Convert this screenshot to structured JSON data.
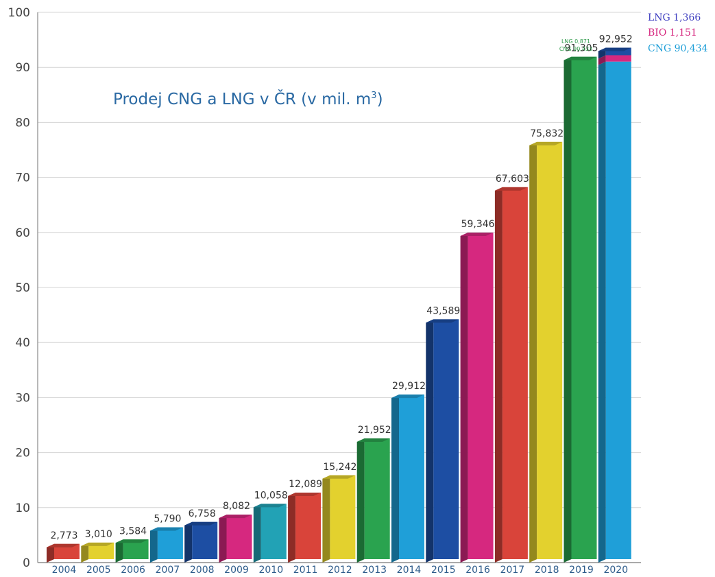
{
  "chart_data": {
    "type": "bar",
    "title": "Prodej CNG a LNG v ČR (v mil. m",
    "title_sup": "3",
    "title_end": ")",
    "ylim": [
      0,
      100
    ],
    "yticks": [
      "0",
      "10",
      "20",
      "30",
      "40",
      "50",
      "60",
      "70",
      "80",
      "90",
      "100"
    ],
    "grid": true,
    "categories": [
      "2004",
      "2005",
      "2006",
      "2007",
      "2008",
      "2009",
      "2010",
      "2011",
      "2012",
      "2013",
      "2014",
      "2015",
      "2016",
      "2017",
      "2018",
      "2019",
      "2020"
    ],
    "values": [
      2.773,
      3.01,
      3.584,
      5.79,
      6.758,
      8.082,
      10.058,
      12.089,
      15.242,
      21.952,
      29.912,
      43.589,
      59.346,
      67.603,
      75.832,
      91.305,
      92.952
    ],
    "labels": [
      "2,773",
      "3,010",
      "3,584",
      "5,790",
      "6,758",
      "8,082",
      "10,058",
      "12,089",
      "15,242",
      "21,952",
      "29,912",
      "43,589",
      "59,346",
      "67,603",
      "75,832",
      "91,305",
      "92,952"
    ],
    "colors": [
      "#d9443a",
      "#e3d12e",
      "#2aa34f",
      "#1f9fd8",
      "#1d4ea3",
      "#d6287f",
      "#22a2b5",
      "#d9443a",
      "#e3d12e",
      "#2aa34f",
      "#1f9fd8",
      "#1d4ea3",
      "#d6287f",
      "#d9443a",
      "#e3d12e",
      "#2aa34f",
      "#1f9fd8"
    ],
    "annotation_2019": {
      "lng": "LNG 0,871",
      "cng": "CNG 90,433"
    },
    "breakdown_2020": [
      {
        "name": "CNG",
        "value": 90.434,
        "label": "CNG 90,434",
        "color": "#1f9fd8"
      },
      {
        "name": "BIO",
        "value": 1.151,
        "label": "BIO 1,151",
        "color": "#d6287f"
      },
      {
        "name": "LNG",
        "value": 1.366,
        "label": "LNG 1,366",
        "color": "#1d4ea3"
      }
    ],
    "legend_colors": {
      "LNG": "#3d3dc0",
      "BIO": "#d6287f",
      "CNG": "#1f9fd8"
    }
  }
}
